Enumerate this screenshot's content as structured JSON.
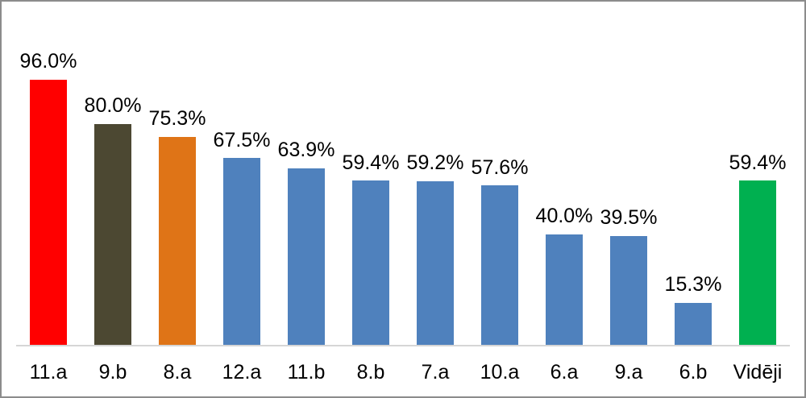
{
  "chart_data": {
    "type": "bar",
    "title": "",
    "xlabel": "",
    "ylabel": "",
    "categories": [
      "11.a",
      "9.b",
      "8.a",
      "12.a",
      "11.b",
      "8.b",
      "7.a",
      "10.a",
      "6.a",
      "9.a",
      "6.b",
      "Vidēji"
    ],
    "values": [
      96.0,
      80.0,
      75.3,
      67.5,
      63.9,
      59.4,
      59.2,
      57.6,
      40.0,
      39.5,
      15.3,
      59.4
    ],
    "value_labels": [
      "96.0%",
      "80.0%",
      "75.3%",
      "67.5%",
      "63.9%",
      "59.4%",
      "59.2%",
      "57.6%",
      "40.0%",
      "39.5%",
      "15.3%",
      "59.4%"
    ],
    "bar_colors": [
      "#FF0000",
      "#4C4832",
      "#DF7417",
      "#4F81BD",
      "#4F81BD",
      "#4F81BD",
      "#4F81BD",
      "#4F81BD",
      "#4F81BD",
      "#4F81BD",
      "#4F81BD",
      "#00B050"
    ],
    "ylim": [
      0,
      100
    ],
    "grid": false,
    "legend": null,
    "data_labels_position": "above-bars",
    "axis_line_color": "#D6D6D6",
    "frame_border_color": "#8C8C8C",
    "label_color": "#000000",
    "background_color": "#FFFFFF"
  }
}
